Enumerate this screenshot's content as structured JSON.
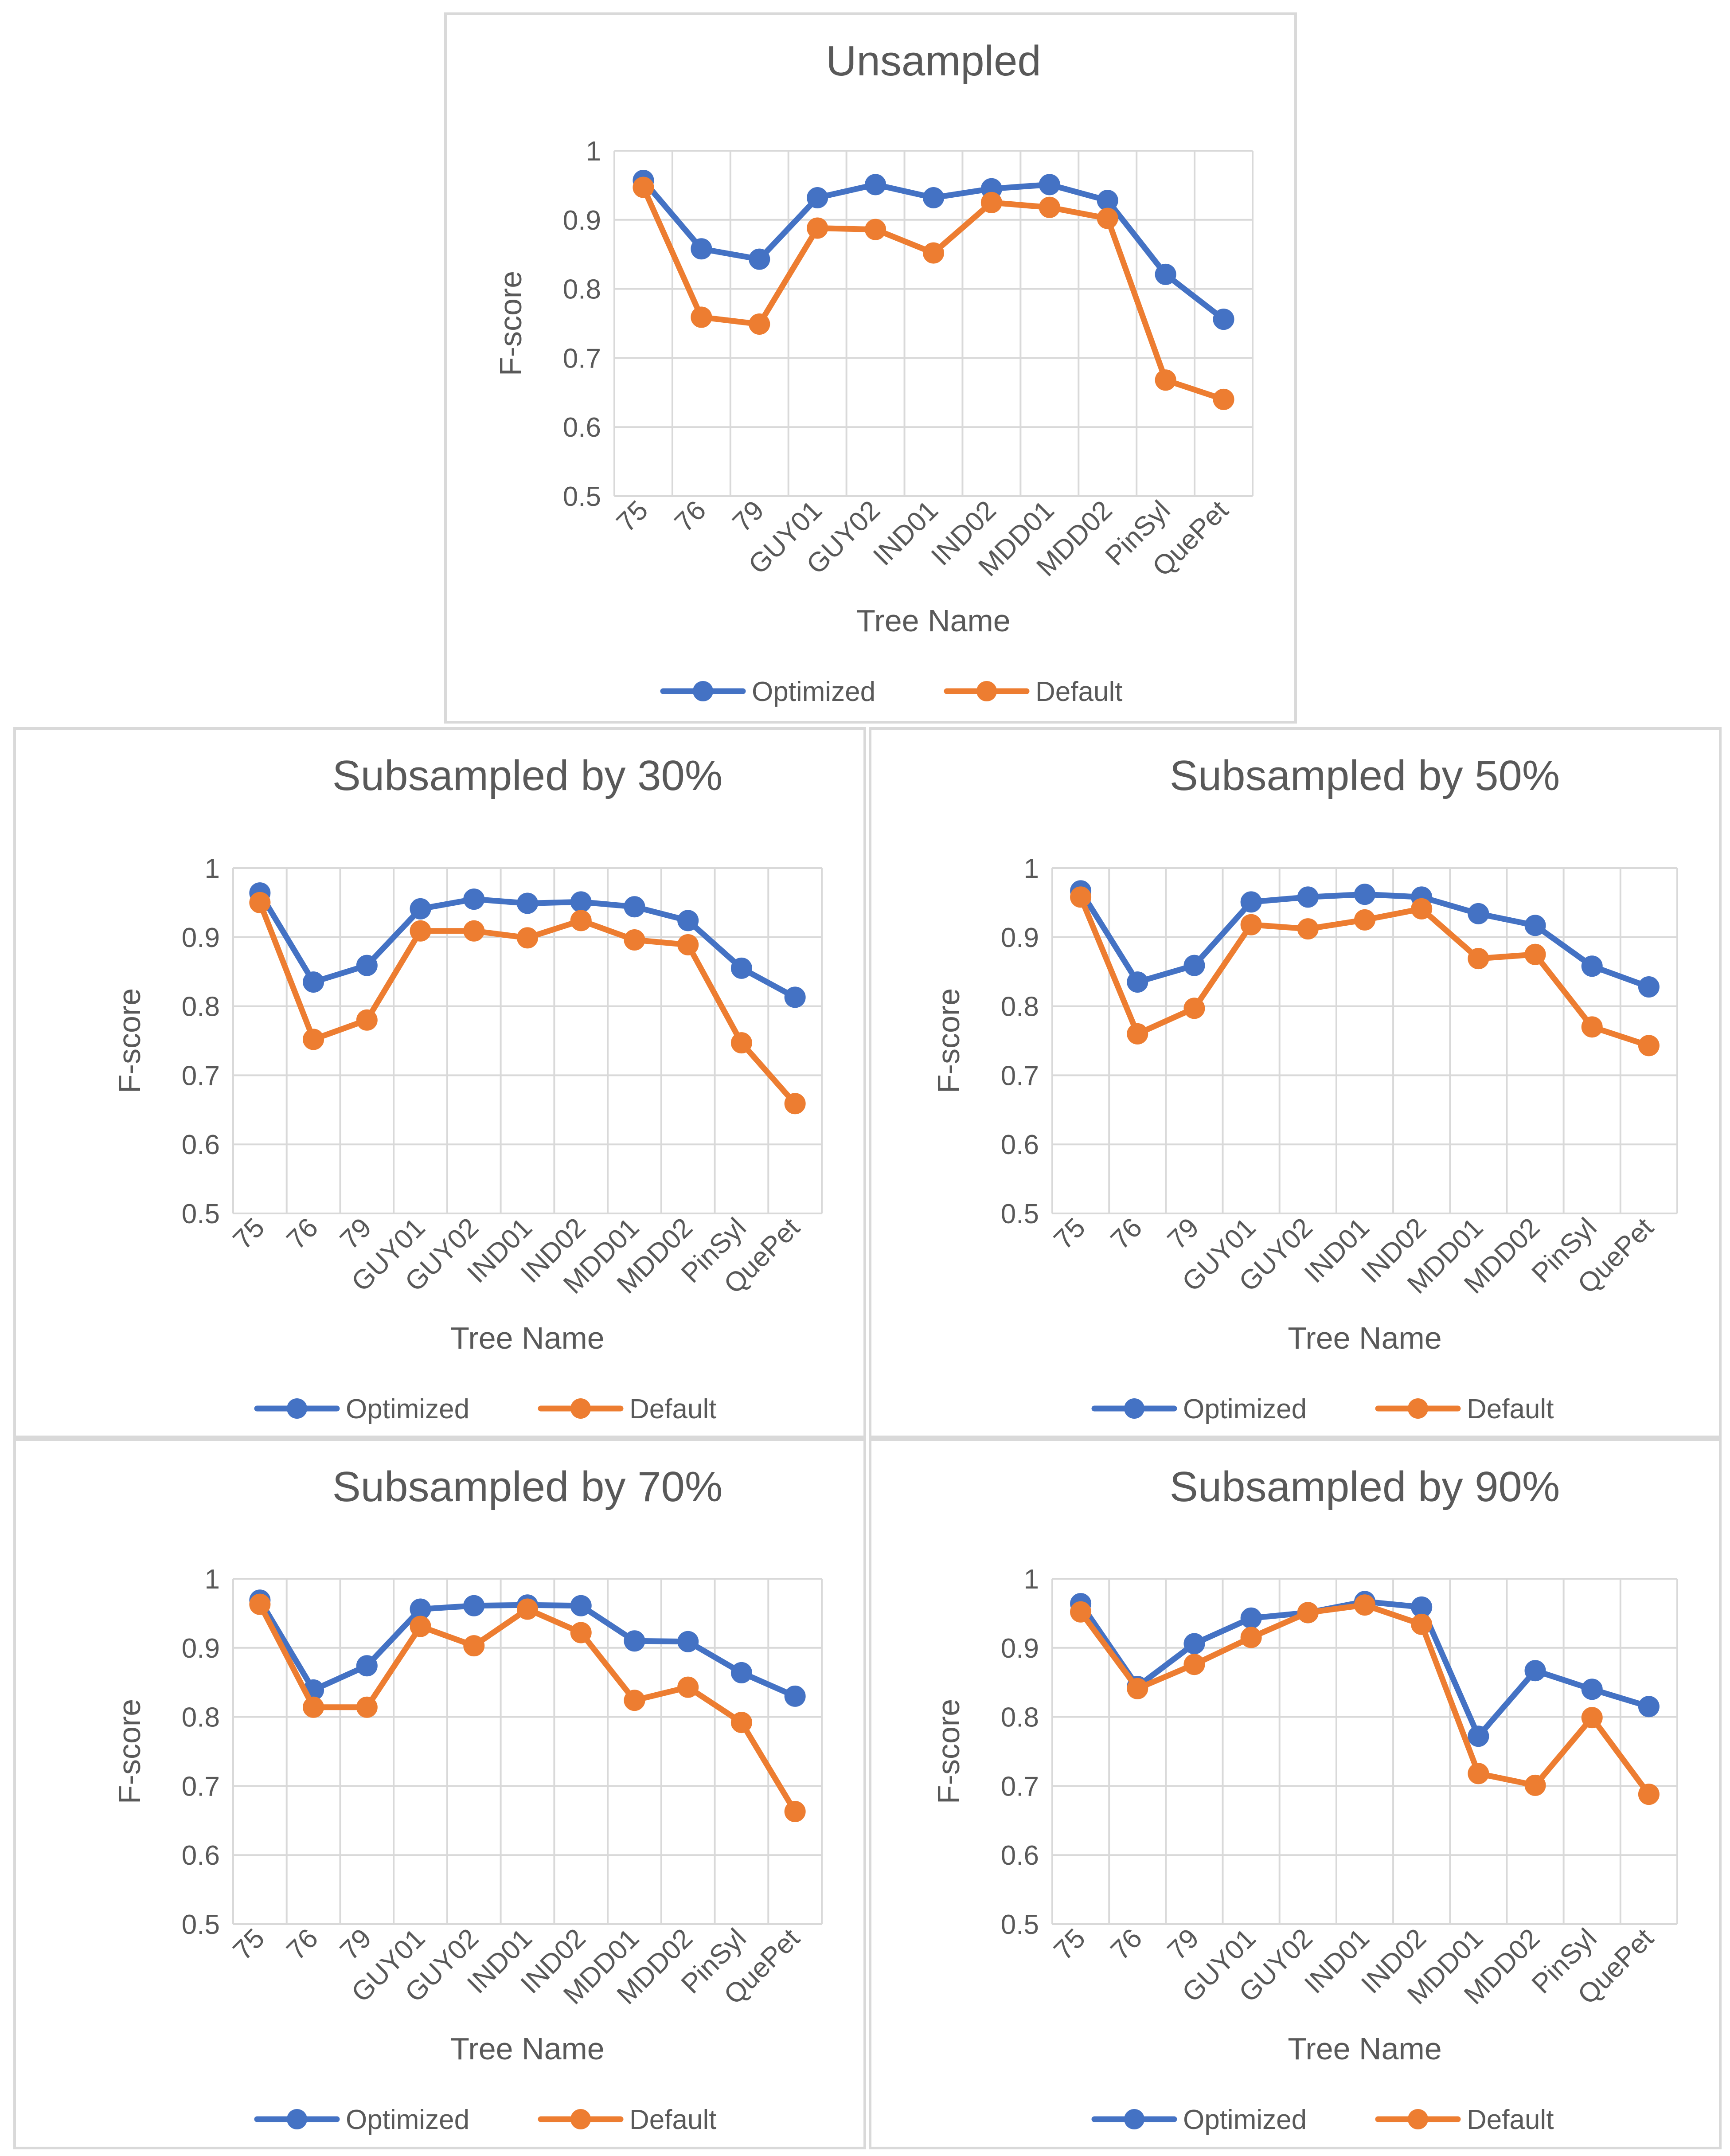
{
  "chart_data": [
    {
      "type": "line",
      "title": "Unsampled",
      "xlabel": "Tree Name",
      "ylabel": "F-score",
      "ylim": [
        0.5,
        1
      ],
      "yticks": [
        "0.5",
        "0.6",
        "0.7",
        "0.8",
        "0.9",
        "1"
      ],
      "categories": [
        "75",
        "76",
        "79",
        "GUY01",
        "GUY02",
        "IND01",
        "IND02",
        "MDD01",
        "MDD02",
        "PinSyl",
        "QuePet"
      ],
      "series": [
        {
          "name": "Optimized",
          "color": "#4472c4",
          "values": [
            0.957,
            0.858,
            0.843,
            0.932,
            0.951,
            0.932,
            0.945,
            0.951,
            0.928,
            0.821,
            0.756
          ]
        },
        {
          "name": "Default",
          "color": "#ed7d31",
          "values": [
            0.947,
            0.759,
            0.749,
            0.888,
            0.886,
            0.852,
            0.925,
            0.918,
            0.902,
            0.668,
            0.64
          ]
        }
      ],
      "legend": "bottom",
      "grid": true
    },
    {
      "type": "line",
      "title": "Subsampled by 30%",
      "xlabel": "Tree Name",
      "ylabel": "F-score",
      "ylim": [
        0.5,
        1
      ],
      "yticks": [
        "0.5",
        "0.6",
        "0.7",
        "0.8",
        "0.9",
        "1"
      ],
      "categories": [
        "75",
        "76",
        "79",
        "GUY01",
        "GUY02",
        "IND01",
        "IND02",
        "MDD01",
        "MDD02",
        "PinSyl",
        "QuePet"
      ],
      "series": [
        {
          "name": "Optimized",
          "color": "#4472c4",
          "values": [
            0.964,
            0.835,
            0.859,
            0.941,
            0.955,
            0.949,
            0.951,
            0.944,
            0.924,
            0.855,
            0.813
          ]
        },
        {
          "name": "Default",
          "color": "#ed7d31",
          "values": [
            0.95,
            0.752,
            0.78,
            0.909,
            0.909,
            0.899,
            0.924,
            0.896,
            0.889,
            0.747,
            0.659
          ]
        }
      ],
      "legend": "bottom",
      "grid": true
    },
    {
      "type": "line",
      "title": "Subsampled by 50%",
      "xlabel": "Tree Name",
      "ylabel": "F-score",
      "ylim": [
        0.5,
        1
      ],
      "yticks": [
        "0.5",
        "0.6",
        "0.7",
        "0.8",
        "0.9",
        "1"
      ],
      "categories": [
        "75",
        "76",
        "79",
        "GUY01",
        "GUY02",
        "IND01",
        "IND02",
        "MDD01",
        "MDD02",
        "PinSyl",
        "QuePet"
      ],
      "series": [
        {
          "name": "Optimized",
          "color": "#4472c4",
          "values": [
            0.967,
            0.835,
            0.859,
            0.951,
            0.958,
            0.962,
            0.958,
            0.934,
            0.917,
            0.858,
            0.828
          ]
        },
        {
          "name": "Default",
          "color": "#ed7d31",
          "values": [
            0.958,
            0.76,
            0.797,
            0.918,
            0.912,
            0.925,
            0.941,
            0.869,
            0.875,
            0.77,
            0.743
          ]
        }
      ],
      "legend": "bottom",
      "grid": true
    },
    {
      "type": "line",
      "title": "Subsampled by 70%",
      "xlabel": "Tree Name",
      "ylabel": "F-score",
      "ylim": [
        0.5,
        1
      ],
      "yticks": [
        "0.5",
        "0.6",
        "0.7",
        "0.8",
        "0.9",
        "1"
      ],
      "categories": [
        "75",
        "76",
        "79",
        "GUY01",
        "GUY02",
        "IND01",
        "IND02",
        "MDD01",
        "MDD02",
        "PinSyl",
        "QuePet"
      ],
      "series": [
        {
          "name": "Optimized",
          "color": "#4472c4",
          "values": [
            0.969,
            0.839,
            0.874,
            0.956,
            0.961,
            0.962,
            0.961,
            0.91,
            0.909,
            0.864,
            0.83
          ]
        },
        {
          "name": "Default",
          "color": "#ed7d31",
          "values": [
            0.963,
            0.814,
            0.814,
            0.931,
            0.903,
            0.956,
            0.922,
            0.824,
            0.843,
            0.792,
            0.663
          ]
        }
      ],
      "legend": "bottom",
      "grid": true
    },
    {
      "type": "line",
      "title": "Subsampled by 90%",
      "xlabel": "Tree Name",
      "ylabel": "F-score",
      "ylim": [
        0.5,
        1
      ],
      "yticks": [
        "0.5",
        "0.6",
        "0.7",
        "0.8",
        "0.9",
        "1"
      ],
      "categories": [
        "75",
        "76",
        "79",
        "GUY01",
        "GUY02",
        "IND01",
        "IND02",
        "MDD01",
        "MDD02",
        "PinSyl",
        "QuePet"
      ],
      "series": [
        {
          "name": "Optimized",
          "color": "#4472c4",
          "values": [
            0.964,
            0.844,
            0.906,
            0.943,
            0.951,
            0.967,
            0.959,
            0.772,
            0.867,
            0.84,
            0.815
          ]
        },
        {
          "name": "Default",
          "color": "#ed7d31",
          "values": [
            0.952,
            0.841,
            0.876,
            0.915,
            0.951,
            0.962,
            0.934,
            0.718,
            0.701,
            0.799,
            0.688
          ]
        }
      ],
      "legend": "bottom",
      "grid": true
    }
  ]
}
